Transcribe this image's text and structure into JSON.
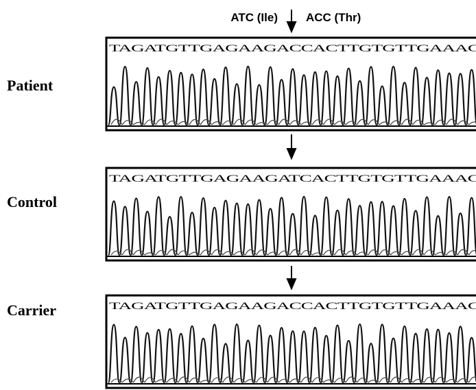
{
  "header": {
    "left_codon": "ATC (Ile)",
    "right_codon": "ACC (Thr)"
  },
  "panels": [
    {
      "label": "Patient",
      "sequence": "TAGATGTTGAGAAGACCACTTGTGTTGAAAC"
    },
    {
      "label": "Control",
      "sequence": "TAGATGTTGAGAAGATCACTTGTGTTGAAAC"
    },
    {
      "label": "Carrier",
      "sequence": "TAGATGTTGAGAAGACCACTTGTGTTGAAAC"
    }
  ]
}
